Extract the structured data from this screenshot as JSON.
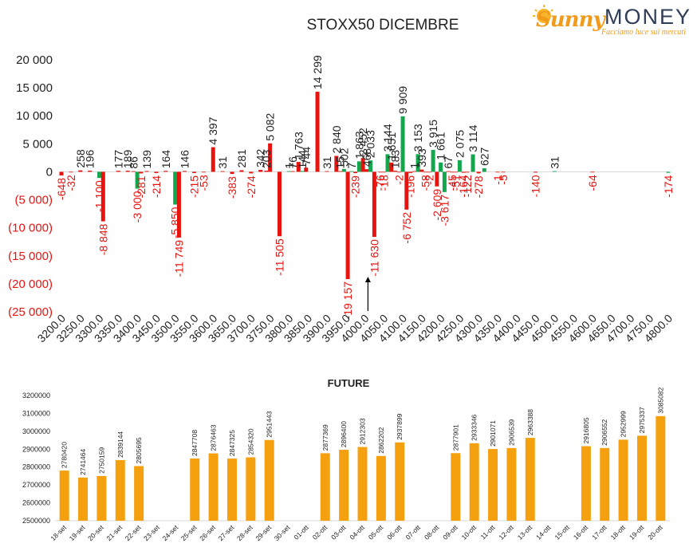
{
  "logo": {
    "brand_left": "Sunny",
    "brand_right": "MONEY",
    "tagline": "Facciamo luce sui mercati"
  },
  "colors": {
    "red": "#e8130f",
    "green": "#12a64d",
    "orange": "#f5a00f",
    "text": "#222222",
    "negative_text": "#e8130f"
  },
  "chart_data": [
    {
      "type": "bar",
      "title": "STOXX50 DICEMBRE",
      "ylim": [
        -25000,
        20000
      ],
      "yticks": [
        "20 000",
        "15 000",
        "10 000",
        "5 000",
        "0",
        "(5 000)",
        "(10 000)",
        "(15 000)",
        "(20 000)",
        "(25 000)"
      ],
      "ytick_values": [
        20000,
        15000,
        10000,
        5000,
        0,
        -5000,
        -10000,
        -15000,
        -20000,
        -25000
      ],
      "categories": [
        "3200.0",
        "3250.0",
        "3300.0",
        "3350.0",
        "3400.0",
        "3450.0",
        "3500.0",
        "3550.0",
        "3600.0",
        "3650.0",
        "3700.0",
        "3750.0",
        "3800.0",
        "3850.0",
        "3900.0",
        "3950.0",
        "4000.0",
        "4050.0",
        "4100.0",
        "4150.0",
        "4200.0",
        "4250.0",
        "4300.0",
        "4350.0",
        "4400.0",
        "4450.0",
        "4500.0",
        "4550.0",
        "4600.0",
        "4650.0",
        "4700.0",
        "4750.0",
        "4800.0"
      ],
      "bars": [
        {
          "x": 3200,
          "value": -648,
          "label": "-648",
          "color": "red"
        },
        {
          "x": 3225,
          "value": -32,
          "label": "-32",
          "color": "red"
        },
        {
          "x": 3250,
          "value": 258,
          "label": "258",
          "color": "red"
        },
        {
          "x": 3275,
          "value": 196,
          "label": "196",
          "color": "red"
        },
        {
          "x": 3300,
          "value": -1100,
          "label": "-1 100",
          "color": "green"
        },
        {
          "x": 3310,
          "value": -8848,
          "label": "-8 848",
          "color": "red"
        },
        {
          "x": 3350,
          "value": 177,
          "label": "177",
          "color": "red"
        },
        {
          "x": 3375,
          "value": 189,
          "label": "189",
          "color": "red"
        },
        {
          "x": 3390,
          "value": 86,
          "label": "86",
          "color": "red"
        },
        {
          "x": 3400,
          "value": -3000,
          "label": "-3 000",
          "color": "green"
        },
        {
          "x": 3410,
          "value": -281,
          "label": "-281",
          "color": "red"
        },
        {
          "x": 3425,
          "value": 139,
          "label": "139",
          "color": "red"
        },
        {
          "x": 3450,
          "value": -214,
          "label": "-214",
          "color": "red"
        },
        {
          "x": 3475,
          "value": 164,
          "label": "164",
          "color": "red"
        },
        {
          "x": 3500,
          "value": -5850,
          "label": "-5 850",
          "color": "green"
        },
        {
          "x": 3510,
          "value": -11749,
          "label": "-11 749",
          "color": "red"
        },
        {
          "x": 3525,
          "value": 146,
          "label": "146",
          "color": "red"
        },
        {
          "x": 3550,
          "value": -215,
          "label": "-215",
          "color": "red"
        },
        {
          "x": 3575,
          "value": -53,
          "label": "-53",
          "color": "red"
        },
        {
          "x": 3600,
          "value": 4397,
          "label": "4 397",
          "color": "red"
        },
        {
          "x": 3625,
          "value": 31,
          "label": "31",
          "color": "red"
        },
        {
          "x": 3650,
          "value": -383,
          "label": "-383",
          "color": "red"
        },
        {
          "x": 3675,
          "value": 281,
          "label": "281",
          "color": "red"
        },
        {
          "x": 3700,
          "value": -274,
          "label": "-274",
          "color": "red"
        },
        {
          "x": 3725,
          "value": 342,
          "label": "342",
          "color": "red"
        },
        {
          "x": 3740,
          "value": 203,
          "label": "203",
          "color": "red"
        },
        {
          "x": 3750,
          "value": 5082,
          "label": "5 082",
          "color": "red"
        },
        {
          "x": 3775,
          "value": -11505,
          "label": "-11 505",
          "color": "red"
        },
        {
          "x": 3800,
          "value": 1,
          "label": "1",
          "color": "green"
        },
        {
          "x": 3810,
          "value": 76,
          "label": "76",
          "color": "red"
        },
        {
          "x": 3825,
          "value": 1763,
          "label": "1 763",
          "color": "red"
        },
        {
          "x": 3835,
          "value": 144,
          "label": "144",
          "color": "green"
        },
        {
          "x": 3845,
          "value": 744,
          "label": "744",
          "color": "red"
        },
        {
          "x": 3875,
          "value": 14299,
          "label": "14 299",
          "color": "red"
        },
        {
          "x": 3900,
          "value": 31,
          "label": "31",
          "color": "red"
        },
        {
          "x": 3925,
          "value": 2840,
          "label": "2 840",
          "color": "red"
        },
        {
          "x": 3935,
          "value": 15,
          "label": "15",
          "color": "red"
        },
        {
          "x": 3945,
          "value": 502,
          "label": "502",
          "color": "green"
        },
        {
          "x": 3955,
          "value": -19157,
          "label": "-19 157",
          "color": "red"
        },
        {
          "x": 3965,
          "value": 7,
          "label": "7",
          "color": "green"
        },
        {
          "x": 3975,
          "value": -239,
          "label": "-239",
          "color": "red"
        },
        {
          "x": 3985,
          "value": 1863,
          "label": "1 863",
          "color": "green"
        },
        {
          "x": 3995,
          "value": 2452,
          "label": "2 452",
          "color": "red"
        },
        {
          "x": 4005,
          "value": 468,
          "label": "468",
          "color": "red"
        },
        {
          "x": 4015,
          "value": 2033,
          "label": "2 033",
          "color": "green"
        },
        {
          "x": 4025,
          "value": -11630,
          "label": "-11 630",
          "color": "red"
        },
        {
          "x": 4040,
          "value": -76,
          "label": "-76",
          "color": "red"
        },
        {
          "x": 4050,
          "value": -18,
          "label": "-18",
          "color": "red"
        },
        {
          "x": 4060,
          "value": 3144,
          "label": "3 144",
          "color": "green"
        },
        {
          "x": 4070,
          "value": 1651,
          "label": "1 651",
          "color": "red"
        },
        {
          "x": 4080,
          "value": 183,
          "label": "183",
          "color": "red"
        },
        {
          "x": 4090,
          "value": -2,
          "label": "-2",
          "color": "red"
        },
        {
          "x": 4100,
          "value": 9909,
          "label": "9 909",
          "color": "green"
        },
        {
          "x": 4110,
          "value": -6752,
          "label": "-6 752",
          "color": "red"
        },
        {
          "x": 4120,
          "value": -196,
          "label": "-196",
          "color": "red"
        },
        {
          "x": 4130,
          "value": 1,
          "label": "1",
          "color": "red"
        },
        {
          "x": 4140,
          "value": 3153,
          "label": "3 153",
          "color": "green"
        },
        {
          "x": 4150,
          "value": 393,
          "label": "393",
          "color": "red"
        },
        {
          "x": 4160,
          "value": -58,
          "label": "-58",
          "color": "red"
        },
        {
          "x": 4170,
          "value": -2,
          "label": "-2",
          "color": "red"
        },
        {
          "x": 4180,
          "value": 3915,
          "label": "3 915",
          "color": "green"
        },
        {
          "x": 4190,
          "value": -2609,
          "label": "-2 609",
          "color": "red"
        },
        {
          "x": 4200,
          "value": 1661,
          "label": "1 661",
          "color": "green"
        },
        {
          "x": 4210,
          "value": -3617,
          "label": "-3 617",
          "color": "green"
        },
        {
          "x": 4220,
          "value": 67,
          "label": "67",
          "color": "red"
        },
        {
          "x": 4230,
          "value": -45,
          "label": "-45",
          "color": "red"
        },
        {
          "x": 4240,
          "value": -51,
          "label": "-51",
          "color": "red"
        },
        {
          "x": 4250,
          "value": 2075,
          "label": "2 075",
          "color": "green"
        },
        {
          "x": 4260,
          "value": -164,
          "label": "-164",
          "color": "red"
        },
        {
          "x": 4270,
          "value": -122,
          "label": "-122",
          "color": "red"
        },
        {
          "x": 4285,
          "value": 3114,
          "label": "3 114",
          "color": "green"
        },
        {
          "x": 4300,
          "value": -278,
          "label": "-278",
          "color": "red"
        },
        {
          "x": 4315,
          "value": 627,
          "label": "627",
          "color": "green"
        },
        {
          "x": 4350,
          "value": -1,
          "label": "-1",
          "color": "red"
        },
        {
          "x": 4365,
          "value": -5,
          "label": "-5",
          "color": "red"
        },
        {
          "x": 4450,
          "value": -140,
          "label": "-140",
          "color": "red"
        },
        {
          "x": 4500,
          "value": 31,
          "label": "31",
          "color": "green"
        },
        {
          "x": 4600,
          "value": -64,
          "label": "-64",
          "color": "red"
        },
        {
          "x": 4800,
          "value": -174,
          "label": "-174",
          "color": "green"
        }
      ],
      "annotation": {
        "type": "arrow",
        "x": 4025,
        "from_y": -25000,
        "to_y": -18500
      }
    },
    {
      "type": "bar",
      "title": "FUTURE",
      "ylim": [
        2500000,
        3200000
      ],
      "yticks": [
        "3200000",
        "3100000",
        "3000000",
        "2900000",
        "2800000",
        "2700000",
        "2600000",
        "2500000"
      ],
      "ytick_values": [
        3200000,
        3100000,
        3000000,
        2900000,
        2800000,
        2700000,
        2600000,
        2500000
      ],
      "categories": [
        "18-set",
        "19-set",
        "20-set",
        "21-set",
        "22-set",
        "23-set",
        "24-set",
        "25-set",
        "26-set",
        "27-set",
        "28-set",
        "29-set",
        "30-set",
        "01-ott",
        "02-ott",
        "03-ott",
        "04-ott",
        "05-ott",
        "06-ott",
        "07-ott",
        "08-ott",
        "09-ott",
        "10-ott",
        "11-ott",
        "12-ott",
        "13-ott",
        "14-ott",
        "15-ott",
        "16-ott",
        "17-ott",
        "18-ott",
        "19-ott",
        "20-ott"
      ],
      "values": [
        2780420,
        2741464,
        2750159,
        2839144,
        2805695,
        null,
        null,
        2847708,
        2876463,
        2847325,
        2854320,
        2951443,
        null,
        null,
        2877369,
        2896400,
        2912303,
        2862202,
        2937899,
        null,
        null,
        2877901,
        2933346,
        2901071,
        2906539,
        2963388,
        null,
        null,
        2916805,
        2906552,
        2952999,
        2975337,
        3085082
      ],
      "labels": [
        "2780420",
        "2741464",
        "2750159",
        "2839144",
        "2805695",
        "",
        "",
        "2847708",
        "2876463",
        "2847325",
        "2854320",
        "2951443",
        "",
        "",
        "2877369",
        "2896400",
        "2912303",
        "2862202",
        "2937899",
        "",
        "",
        "2877901",
        "2933346",
        "2901071",
        "2906539",
        "2963388",
        "",
        "",
        "2916805",
        "2906552",
        "2952999",
        "2975337",
        "3085082"
      ]
    }
  ]
}
